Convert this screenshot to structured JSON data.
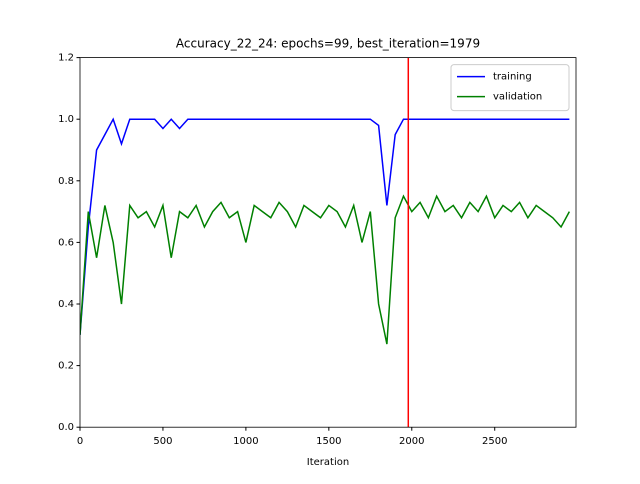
{
  "chart_data": {
    "type": "line",
    "title": "Accuracy_22_24: epochs=99, best_iteration=1979",
    "xlabel": "Iteration",
    "x": [
      0,
      50,
      100,
      150,
      200,
      250,
      300,
      350,
      400,
      450,
      500,
      550,
      600,
      650,
      700,
      750,
      800,
      850,
      900,
      950,
      1000,
      1050,
      1100,
      1150,
      1200,
      1250,
      1300,
      1350,
      1400,
      1450,
      1500,
      1550,
      1600,
      1650,
      1700,
      1750,
      1800,
      1850,
      1900,
      1950,
      2000,
      2050,
      2100,
      2150,
      2200,
      2250,
      2300,
      2350,
      2400,
      2450,
      2500,
      2550,
      2600,
      2650,
      2700,
      2750,
      2800,
      2850,
      2900,
      2950
    ],
    "series": [
      {
        "name": "training",
        "color": "#0000ff",
        "values": [
          0.3,
          0.65,
          0.9,
          0.95,
          1,
          0.92,
          1,
          1,
          1,
          1,
          0.97,
          1,
          0.97,
          1,
          1,
          1,
          1,
          1,
          1,
          1,
          1,
          1,
          1,
          1,
          1,
          1,
          1,
          1,
          1,
          1,
          1,
          1,
          1,
          1,
          1,
          1,
          0.98,
          0.72,
          0.95,
          1,
          1,
          1,
          1,
          1,
          1,
          1,
          1,
          1,
          1,
          1,
          1,
          1,
          1,
          1,
          1,
          1,
          1,
          1,
          1,
          1
        ]
      },
      {
        "name": "validation",
        "color": "#008000",
        "values": [
          0.3,
          0.7,
          0.55,
          0.72,
          0.6,
          0.4,
          0.72,
          0.68,
          0.7,
          0.65,
          0.72,
          0.55,
          0.7,
          0.68,
          0.72,
          0.65,
          0.7,
          0.73,
          0.68,
          0.7,
          0.6,
          0.72,
          0.7,
          0.68,
          0.73,
          0.7,
          0.65,
          0.72,
          0.7,
          0.68,
          0.72,
          0.7,
          0.65,
          0.72,
          0.6,
          0.7,
          0.4,
          0.27,
          0.68,
          0.75,
          0.7,
          0.73,
          0.68,
          0.75,
          0.7,
          0.72,
          0.68,
          0.73,
          0.7,
          0.75,
          0.68,
          0.72,
          0.7,
          0.73,
          0.68,
          0.72,
          0.7,
          0.68,
          0.65,
          0.7
        ]
      }
    ],
    "vline": {
      "x": 1979,
      "color": "#ff0000"
    },
    "xlim": [
      0,
      2990
    ],
    "xticks": [
      0,
      500,
      1000,
      1500,
      2000,
      2500
    ],
    "ylim": [
      0,
      1.2
    ],
    "yticks": [
      {
        "value": 0,
        "label": "0.0"
      },
      0.2,
      0.4,
      0.6,
      0.8,
      {
        "value": 1,
        "label": "1.0"
      },
      1.2
    ],
    "legend": "upper right"
  }
}
